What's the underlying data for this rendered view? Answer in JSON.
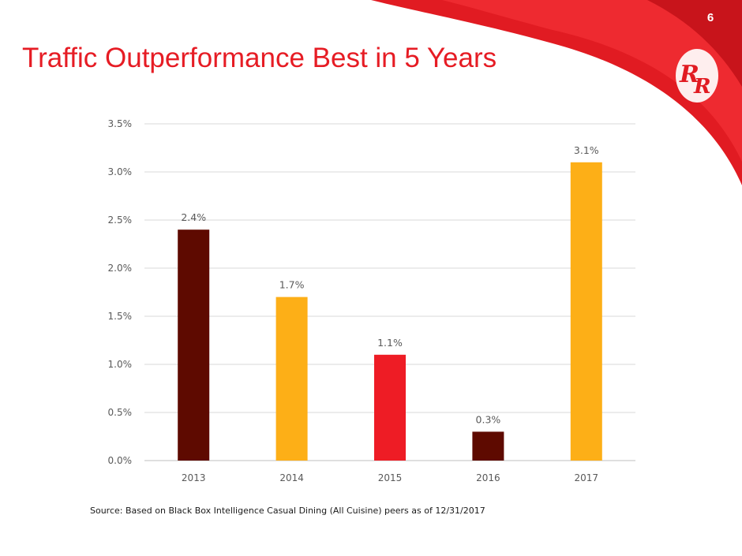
{
  "slide": {
    "page_number": "6",
    "title": "Traffic Outperformance Best in 5 Years",
    "source_note": "Source: Based on Black Box Intelligence Casual Dining (All Cuisine) peers as of 12/31/2017"
  },
  "colors": {
    "brand_red": "#e61c24",
    "dark_red": "#5e0a00",
    "gold": "#fdaf17",
    "red": "#ee1c25"
  },
  "logo": {
    "icon": "rr-monogram-logo"
  },
  "chart_data": {
    "type": "bar",
    "title": "",
    "xlabel": "",
    "ylabel": "",
    "categories": [
      "2013",
      "2014",
      "2015",
      "2016",
      "2017"
    ],
    "series": [
      {
        "values": [
          2.4,
          1.7,
          1.1,
          0.3,
          3.1
        ]
      }
    ],
    "data_labels": [
      "2.4%",
      "1.7%",
      "1.1%",
      "0.3%",
      "3.1%"
    ],
    "bar_colors": [
      "#5e0a00",
      "#fdaf17",
      "#ee1c25",
      "#5e0a00",
      "#fdaf17"
    ],
    "ylim": [
      0,
      3.5
    ],
    "yticks": [
      0,
      0.5,
      1.0,
      1.5,
      2.0,
      2.5,
      3.0,
      3.5
    ],
    "ytick_labels": [
      "0.0%",
      "0.5%",
      "1.0%",
      "1.5%",
      "2.0%",
      "2.5%",
      "3.0%",
      "3.5%"
    ],
    "grid": true,
    "legend": "none"
  }
}
